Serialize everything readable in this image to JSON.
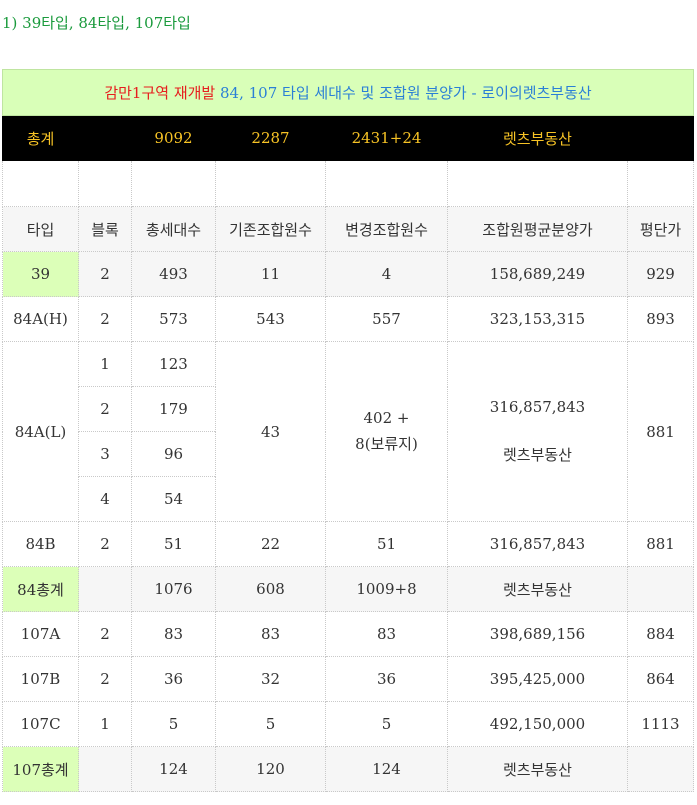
{
  "section_heading": "1) 39타입, 84타입, 107타입",
  "banner": {
    "red": "감만1구역 재개발",
    "blue": " 84, 107 타입 세대수 및 조합원 분양가 - 로이의렛츠부동산"
  },
  "totals": {
    "label": "총계",
    "households": "9092",
    "existing": "2287",
    "changed": "2431+24",
    "realtor": "렛츠부동산"
  },
  "headers": [
    "타입",
    "블록",
    "총세대수",
    "기존조합원수",
    "변경조합원수",
    "조합원평균분양가",
    "평단가"
  ],
  "rows": {
    "r39": {
      "type": "39",
      "block": "2",
      "households": "493",
      "existing": "11",
      "changed": "4",
      "price": "158,689,249",
      "per_pyeong": "929"
    },
    "r84ah": {
      "type": "84A(H)",
      "block": "2",
      "households": "573",
      "existing": "543",
      "changed": "557",
      "price": "323,153,315",
      "per_pyeong": "893"
    },
    "r84al": {
      "type": "84A(L)",
      "blocks": [
        {
          "block": "1",
          "households": "123"
        },
        {
          "block": "2",
          "households": "179"
        },
        {
          "block": "3",
          "households": "96"
        },
        {
          "block": "4",
          "households": "54"
        }
      ],
      "existing": "43",
      "changed_line1": "402 +",
      "changed_line2": "8(보류지)",
      "price": "316,857,843",
      "realtor": "렛츠부동산",
      "per_pyeong": "881"
    },
    "r84b": {
      "type": "84B",
      "block": "2",
      "households": "51",
      "existing": "22",
      "changed": "51",
      "price": "316,857,843",
      "per_pyeong": "881"
    },
    "s84": {
      "type": "84총계",
      "households": "1076",
      "existing": "608",
      "changed": "1009+8",
      "realtor": "렛츠부동산"
    },
    "r107a": {
      "type": "107A",
      "block": "2",
      "households": "83",
      "existing": "83",
      "changed": "83",
      "price": "398,689,156",
      "per_pyeong": "884"
    },
    "r107b": {
      "type": "107B",
      "block": "2",
      "households": "36",
      "existing": "32",
      "changed": "36",
      "price": "395,425,000",
      "per_pyeong": "864"
    },
    "r107c": {
      "type": "107C",
      "block": "1",
      "households": "5",
      "existing": "5",
      "changed": "5",
      "price": "492,150,000",
      "per_pyeong": "1113"
    },
    "s107": {
      "type": "107총계",
      "households": "124",
      "existing": "120",
      "changed": "124",
      "realtor": "렛츠부동산"
    }
  }
}
